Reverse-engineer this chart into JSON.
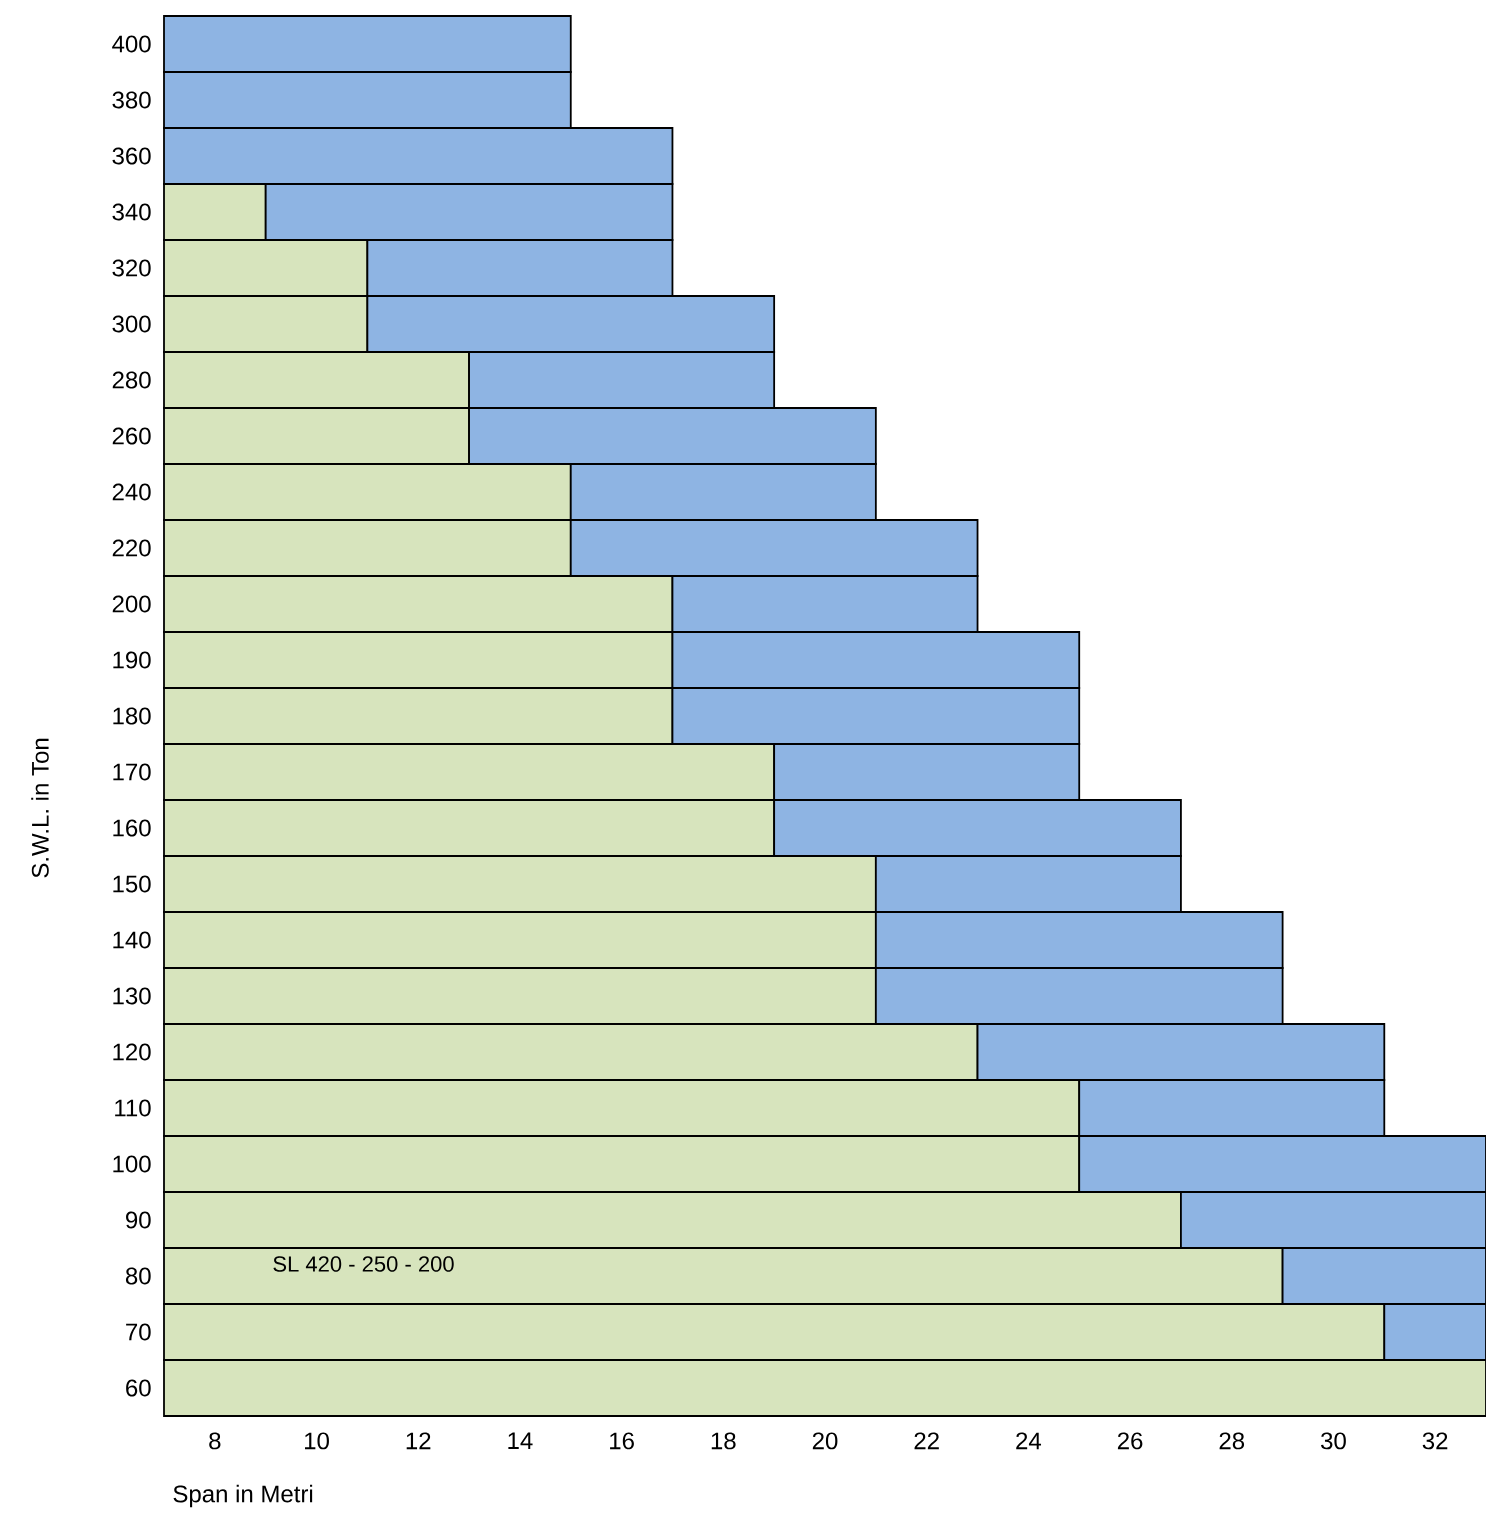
{
  "chart_data": {
    "type": "bar",
    "orientation": "horizontal",
    "xlabel": "Span in Metri",
    "ylabel": "S.W.L. in Ton",
    "categories": [
      "400",
      "380",
      "360",
      "340",
      "320",
      "300",
      "280",
      "260",
      "240",
      "220",
      "200",
      "190",
      "180",
      "170",
      "160",
      "150",
      "140",
      "130",
      "120",
      "110",
      "100",
      "90",
      "80",
      "70",
      "60"
    ],
    "series": [
      {
        "color": "#d7e4bd",
        "base": [
          null,
          null,
          null,
          7,
          7,
          7,
          7,
          7,
          7,
          7,
          7,
          7,
          7,
          7,
          7,
          7,
          7,
          7,
          7,
          7,
          7,
          7,
          7,
          7,
          7
        ],
        "values": [
          null,
          null,
          null,
          2,
          4,
          4,
          6,
          6,
          8,
          8,
          10,
          10,
          10,
          12,
          12,
          14,
          14,
          14,
          16,
          18,
          18,
          20,
          22,
          24,
          26
        ]
      },
      {
        "color": "#8eb4e3",
        "base": [
          7,
          7,
          7,
          9,
          11,
          11,
          13,
          13,
          15,
          15,
          17,
          17,
          17,
          19,
          19,
          21,
          21,
          21,
          23,
          25,
          25,
          27,
          29,
          31,
          null
        ],
        "values": [
          8,
          8,
          10,
          8,
          6,
          8,
          6,
          8,
          6,
          8,
          6,
          8,
          8,
          6,
          8,
          6,
          8,
          8,
          8,
          6,
          8,
          6,
          4,
          2,
          null
        ]
      }
    ],
    "xlim": [
      7,
      33
    ],
    "xticks": [
      8,
      10,
      12,
      14,
      16,
      18,
      20,
      22,
      24,
      26,
      28,
      30,
      32
    ],
    "annotations": [
      "SL 420 - 250 - 200"
    ]
  }
}
